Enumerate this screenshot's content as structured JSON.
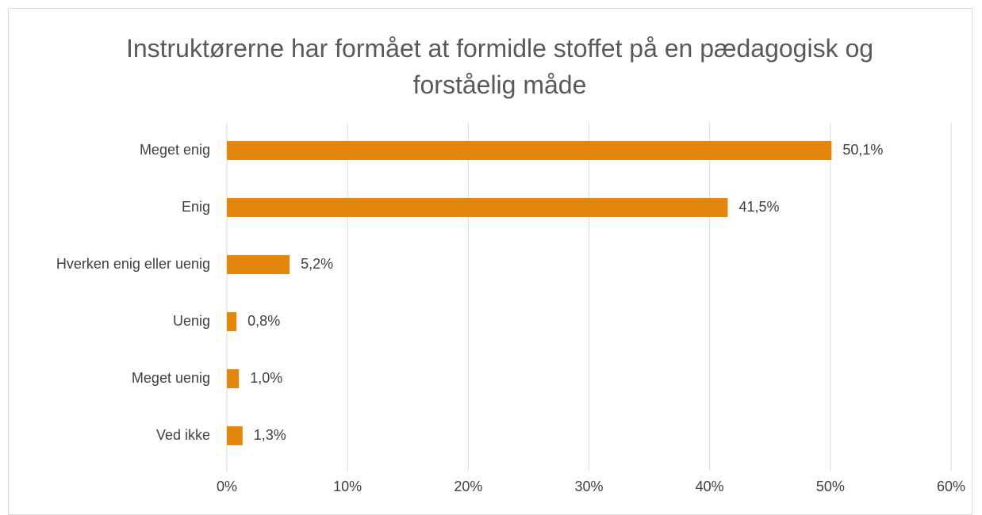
{
  "chart_data": {
    "type": "bar",
    "orientation": "horizontal",
    "title": "Instruktørerne har formået at formidle stoffet på en pædagogisk og forståelig måde",
    "categories": [
      "Meget enig",
      "Enig",
      "Hverken enig eller uenig",
      "Uenig",
      "Meget uenig",
      "Ved ikke"
    ],
    "values": [
      50.1,
      41.5,
      5.2,
      0.8,
      1.0,
      1.3
    ],
    "value_labels": [
      "50,1%",
      "41,5%",
      "5,2%",
      "0,8%",
      "1,0%",
      "1,3%"
    ],
    "color": "#e2870c",
    "xlim": [
      0,
      60
    ],
    "xticks": [
      {
        "value": 0,
        "label": "0%"
      },
      {
        "value": 10,
        "label": "10%"
      },
      {
        "value": 20,
        "label": "20%"
      },
      {
        "value": 30,
        "label": "30%"
      },
      {
        "value": 40,
        "label": "40%"
      },
      {
        "value": 50,
        "label": "50%"
      },
      {
        "value": 60,
        "label": "60%"
      }
    ],
    "grid": true
  }
}
